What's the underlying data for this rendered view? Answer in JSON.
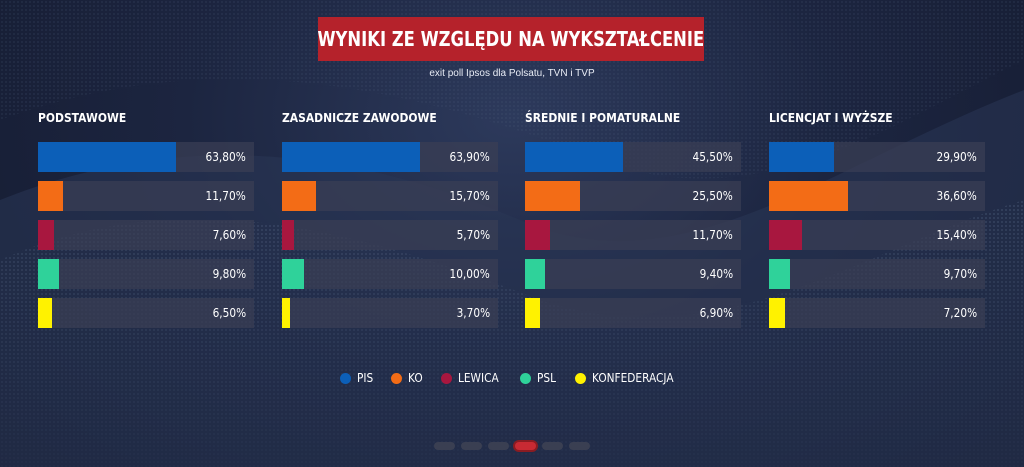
{
  "header": {
    "title": "WYNIKI ZE WZGLĘDU NA WYKSZTAŁCENIE",
    "subtitle": "exit poll Ipsos dla Polsatu, TVN i TVP"
  },
  "chart_data": {
    "type": "bar",
    "orientation": "horizontal",
    "title": "WYNIKI ZE WZGLĘDU NA WYKSZTAŁCENIE",
    "subtitle": "exit poll Ipsos dla Polsatu, TVN i TVP",
    "xlim": [
      0,
      100
    ],
    "value_unit": "%",
    "legend_position": "bottom-center",
    "parties": [
      {
        "name": "PIS",
        "color": "#0c5fb8"
      },
      {
        "name": "KO",
        "color": "#f36c16"
      },
      {
        "name": "LEWICA",
        "color": "#a8173f"
      },
      {
        "name": "PSL",
        "color": "#2fd29a"
      },
      {
        "name": "KONFEDERACJA",
        "color": "#fff200"
      }
    ],
    "groups": [
      {
        "name": "PODSTAWOWE",
        "values": [
          63.8,
          11.7,
          7.6,
          9.8,
          6.5
        ],
        "labels": [
          "63,80%",
          "11,70%",
          "7,60%",
          "9,80%",
          "6,50%"
        ]
      },
      {
        "name": "ZASADNICZE ZAWODOWE",
        "values": [
          63.9,
          15.7,
          5.7,
          10.0,
          3.7
        ],
        "labels": [
          "63,90%",
          "15,70%",
          "5,70%",
          "10,00%",
          "3,70%"
        ]
      },
      {
        "name": "ŚREDNIE I POMATURALNE",
        "values": [
          45.5,
          25.5,
          11.7,
          9.4,
          6.9
        ],
        "labels": [
          "45,50%",
          "25,50%",
          "11,70%",
          "9,40%",
          "6,90%"
        ]
      },
      {
        "name": "LICENCJAT I WYŻSZE",
        "values": [
          29.9,
          36.6,
          15.4,
          9.7,
          7.2
        ],
        "labels": [
          "29,90%",
          "36,60%",
          "15,40%",
          "9,70%",
          "7,20%"
        ]
      }
    ]
  },
  "pagination": {
    "count": 6,
    "active_index": 3
  }
}
